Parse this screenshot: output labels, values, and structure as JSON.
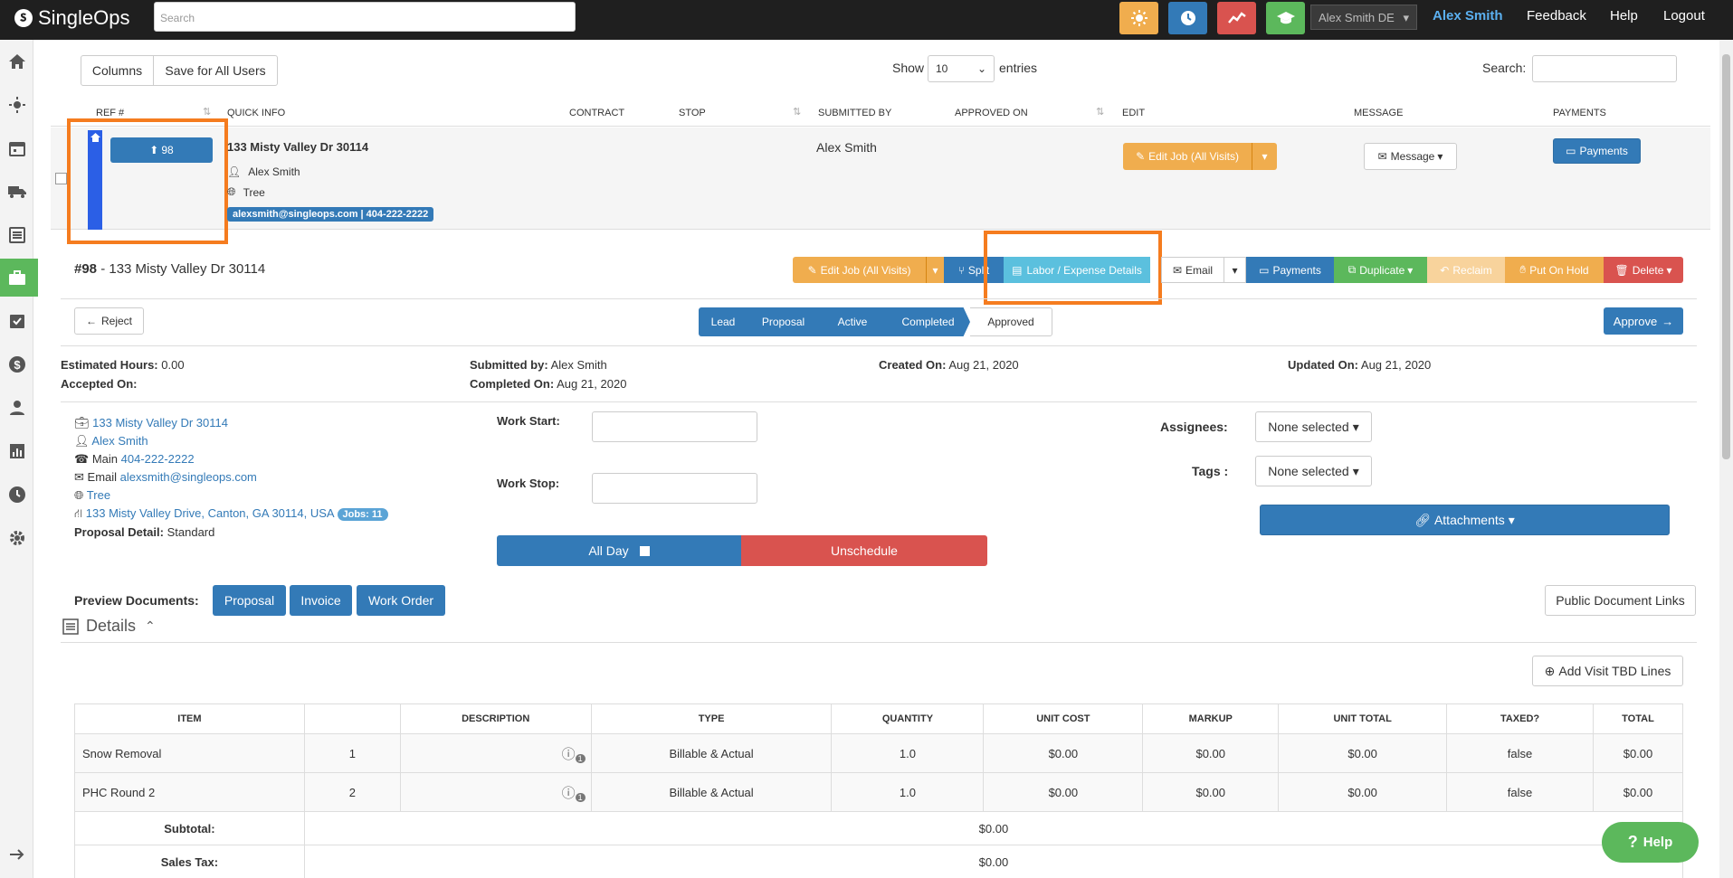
{
  "topbar": {
    "logo": "SingleOps",
    "search_placeholder": "Search",
    "user_select": "Alex Smith DE",
    "user_name": "Alex Smith",
    "feedback": "Feedback",
    "help": "Help",
    "logout": "Logout",
    "icons": [
      "sun-icon",
      "clock-icon",
      "chart-line-icon",
      "graduation-cap-icon"
    ]
  },
  "sidebar": {
    "icons": [
      "home-icon",
      "sun-icon",
      "calendar-icon",
      "truck-icon",
      "list-icon",
      "briefcase-icon",
      "checklist-icon",
      "dollar-icon",
      "user-icon",
      "chart-icon",
      "clock-icon",
      "gear-icon",
      "arrow-right-icon"
    ]
  },
  "table_controls": {
    "columns": "Columns",
    "save_all": "Save for All Users",
    "show": "Show",
    "entries_value": "10",
    "entries": "entries",
    "search": "Search:"
  },
  "table_headers": [
    "REF #",
    "QUICK INFO",
    "CONTRACT",
    "STOP",
    "SUBMITTED BY",
    "APPROVED ON",
    "EDIT",
    "MESSAGE",
    "PAYMENTS"
  ],
  "job_row": {
    "ref": "98",
    "address": "133 Misty Valley Dr 30114",
    "contact": "Alex Smith",
    "service": "Tree",
    "tag": "alexsmith@singleops.com | 404-222-2222",
    "submitted_by": "Alex Smith",
    "edit_job": "Edit Job (All Visits)",
    "message": "Message",
    "payments": "Payments"
  },
  "job_detail": {
    "number": "#98",
    "title": "- 133 Misty Valley Dr 30114",
    "actions": {
      "edit_job": "Edit Job (All Visits)",
      "split": "Split",
      "labor": "Labor / Expense Details",
      "email": "Email",
      "payments": "Payments",
      "duplicate": "Duplicate",
      "reclaim": "Reclaim",
      "hold": "Put On Hold",
      "delete": "Delete"
    },
    "reject": "Reject",
    "approve": "Approve",
    "stages": [
      "Lead",
      "Proposal",
      "Active",
      "Completed",
      "Approved"
    ],
    "info": {
      "est_hours_label": "Estimated Hours:",
      "est_hours": "0.00",
      "accepted_label": "Accepted On:",
      "submitted_label": "Submitted by:",
      "submitted": "Alex Smith",
      "completed_label": "Completed On:",
      "completed": "Aug 21, 2020",
      "created_label": "Created On:",
      "created": "Aug 21, 2020",
      "updated_label": "Updated On:",
      "updated": "Aug 21, 2020"
    },
    "client": {
      "site": "133 Misty Valley Dr 30114",
      "name": "Alex Smith",
      "phone_label": "Main",
      "phone": "404-222-2222",
      "email_label": "Email",
      "email": "alexsmith@singleops.com",
      "service": "Tree",
      "full_address": "133 Misty Valley Drive, Canton, GA 30114, USA",
      "jobs_badge": "Jobs: 11",
      "proposal_label": "Proposal Detail:",
      "proposal": "Standard"
    },
    "work_start": "Work Start:",
    "work_stop": "Work Stop:",
    "all_day": "All Day",
    "unschedule": "Unschedule",
    "assignees_label": "Assignees:",
    "assignees": "None selected",
    "tags_label": "Tags :",
    "tags": "None selected",
    "attachments": "Attachments",
    "preview_label": "Preview Documents:",
    "preview": [
      "Proposal",
      "Invoice",
      "Work Order"
    ],
    "public_links": "Public Document Links",
    "details": "Details",
    "add_tbd": "Add Visit TBD Lines"
  },
  "items_table": {
    "headers": [
      "ITEM",
      "",
      "DESCRIPTION",
      "TYPE",
      "QUANTITY",
      "UNIT COST",
      "MARKUP",
      "UNIT TOTAL",
      "TAXED?",
      "TOTAL"
    ],
    "rows": [
      {
        "item": "Snow Removal",
        "num": "1",
        "type": "Billable & Actual",
        "qty": "1.0",
        "unit_cost": "$0.00",
        "markup": "$0.00",
        "unit_total": "$0.00",
        "taxed": "false",
        "total": "$0.00",
        "badge": "1"
      },
      {
        "item": "PHC Round 2",
        "num": "2",
        "type": "Billable & Actual",
        "qty": "1.0",
        "unit_cost": "$0.00",
        "markup": "$0.00",
        "unit_total": "$0.00",
        "taxed": "false",
        "total": "$0.00",
        "badge": "1"
      }
    ],
    "subtotal_label": "Subtotal:",
    "subtotal": "$0.00",
    "tax_label": "Sales Tax:",
    "tax": "$0.00"
  },
  "help_widget": "Help"
}
